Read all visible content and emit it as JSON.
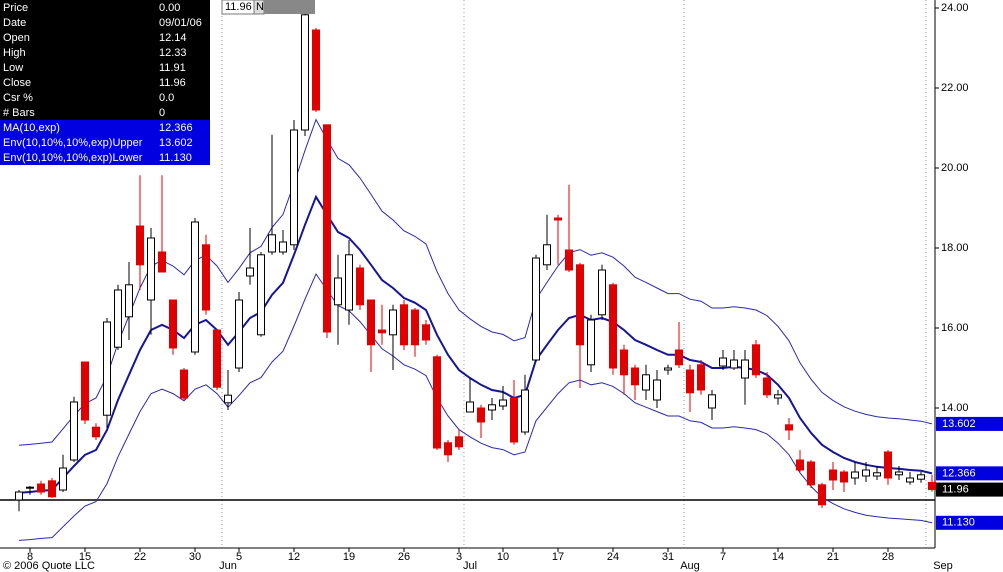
{
  "chart_data": {
    "type": "candlestick",
    "categories": [
      null,
      "8",
      null,
      null,
      null,
      null,
      "15",
      null,
      null,
      null,
      null,
      "22",
      null,
      null,
      null,
      null,
      "30",
      null,
      null,
      null,
      "5",
      null,
      null,
      null,
      null,
      "12",
      null,
      null,
      null,
      null,
      "19",
      null,
      null,
      null,
      null,
      "26",
      null,
      null,
      null,
      null,
      "3",
      null,
      null,
      null,
      "10",
      null,
      null,
      null,
      null,
      "17",
      null,
      null,
      null,
      null,
      "24",
      null,
      null,
      null,
      null,
      "31",
      null,
      null,
      null,
      null,
      "7",
      null,
      null,
      null,
      null,
      "14",
      null,
      null,
      null,
      null,
      "21",
      null,
      null,
      null,
      null,
      "28",
      null,
      null,
      null,
      null
    ],
    "month_labels": [
      null,
      null,
      null,
      null,
      null,
      null,
      null,
      null,
      null,
      null,
      null,
      null,
      null,
      null,
      null,
      null,
      null,
      null,
      null,
      "Jun",
      null,
      null,
      null,
      null,
      null,
      null,
      null,
      null,
      null,
      null,
      null,
      null,
      null,
      null,
      null,
      null,
      null,
      null,
      null,
      null,
      null,
      "Jul",
      null,
      null,
      null,
      null,
      null,
      null,
      null,
      null,
      null,
      null,
      null,
      null,
      null,
      null,
      null,
      null,
      null,
      null,
      null,
      "Aug",
      null,
      null,
      null,
      null,
      null,
      null,
      null,
      null,
      null,
      null,
      null,
      null,
      null,
      null,
      null,
      null,
      null,
      null,
      null,
      null,
      null,
      "Sep"
    ],
    "open": [
      11.7,
      12.0,
      12.1,
      12.18,
      11.95,
      12.7,
      15.15,
      13.52,
      13.82,
      15.52,
      16.28,
      18.55,
      16.7,
      17.9,
      16.7,
      14.95,
      15.4,
      18.08,
      15.95,
      14.13,
      15.0,
      17.3,
      15.83,
      17.9,
      17.9,
      18.08,
      20.95,
      23.45,
      21.08,
      16.58,
      16.45,
      17.5,
      16.7,
      15.95,
      15.83,
      16.58,
      16.45,
      16.08,
      15.28,
      13.13,
      13.28,
      13.9,
      14.0,
      13.95,
      14.05,
      14.25,
      13.4,
      15.2,
      17.58,
      18.75,
      17.95,
      17.58,
      15.08,
      16.33,
      17.08,
      15.45,
      15.0,
      14.45,
      14.2,
      14.95,
      15.45,
      14.95,
      15.08,
      14.0,
      15.05,
      15.0,
      14.75,
      15.58,
      14.75,
      14.25,
      13.58,
      12.7,
      12.65,
      12.08,
      12.45,
      12.4,
      12.25,
      12.3,
      12.3,
      12.9,
      12.33,
      12.15,
      12.22,
      12.14
    ],
    "high": [
      11.95,
      12.05,
      12.18,
      12.25,
      12.83,
      14.28,
      15.15,
      13.62,
      16.25,
      17.08,
      17.65,
      19.82,
      18.5,
      19.82,
      16.7,
      15.0,
      18.75,
      18.33,
      15.95,
      14.95,
      16.9,
      18.5,
      17.9,
      20.83,
      18.45,
      21.2,
      23.95,
      23.5,
      21.08,
      17.83,
      18.2,
      17.58,
      16.7,
      16.58,
      16.58,
      16.7,
      16.5,
      16.2,
      15.33,
      13.2,
      13.45,
      14.75,
      14.08,
      14.25,
      14.55,
      14.7,
      14.83,
      17.83,
      18.83,
      18.83,
      19.58,
      17.63,
      16.33,
      17.58,
      17.13,
      15.58,
      15.08,
      15.08,
      14.95,
      15.08,
      16.15,
      15.08,
      15.2,
      14.45,
      15.45,
      15.45,
      15.45,
      15.7,
      14.9,
      14.45,
      13.75,
      12.95,
      12.7,
      12.13,
      12.65,
      12.45,
      12.65,
      12.65,
      12.55,
      12.95,
      12.55,
      12.4,
      12.4,
      12.33
    ],
    "low": [
      11.42,
      11.83,
      11.83,
      11.75,
      11.9,
      12.65,
      13.6,
      13.2,
      13.5,
      15.45,
      15.7,
      16.95,
      15.83,
      17.4,
      15.33,
      14.2,
      15.33,
      16.33,
      14.45,
      13.95,
      14.9,
      17.08,
      15.78,
      17.83,
      17.83,
      17.95,
      20.8,
      21.4,
      15.75,
      15.58,
      16.08,
      16.45,
      14.9,
      15.58,
      14.95,
      15.45,
      15.28,
      15.58,
      12.95,
      12.65,
      12.95,
      13.9,
      13.25,
      13.7,
      13.95,
      13.08,
      13.33,
      15.15,
      17.45,
      17.58,
      17.4,
      14.5,
      14.9,
      16.2,
      14.83,
      14.33,
      14.2,
      14.2,
      14.0,
      14.83,
      15.0,
      13.9,
      14.33,
      13.7,
      14.95,
      14.95,
      14.08,
      14.75,
      14.25,
      14.08,
      13.2,
      12.4,
      12.0,
      11.5,
      11.95,
      11.9,
      12.08,
      12.15,
      12.2,
      12.08,
      12.2,
      12.08,
      12.13,
      11.91
    ],
    "close": [
      11.9,
      12.02,
      11.9,
      11.78,
      12.5,
      14.15,
      13.7,
      13.28,
      16.15,
      16.95,
      17.08,
      17.58,
      18.25,
      17.4,
      15.5,
      14.25,
      18.65,
      16.45,
      14.52,
      14.32,
      16.7,
      17.5,
      17.83,
      18.33,
      18.15,
      20.95,
      23.83,
      21.45,
      15.9,
      17.25,
      17.83,
      16.58,
      15.58,
      15.88,
      16.45,
      15.58,
      15.58,
      15.7,
      13.0,
      12.83,
      13.03,
      14.15,
      13.65,
      14.08,
      14.2,
      13.15,
      14.45,
      17.75,
      18.08,
      18.7,
      17.45,
      15.58,
      16.2,
      17.45,
      15.0,
      14.83,
      14.58,
      14.83,
      14.7,
      15.0,
      15.08,
      14.38,
      14.45,
      14.33,
      15.25,
      15.2,
      15.2,
      14.83,
      14.33,
      14.33,
      13.45,
      12.45,
      12.08,
      11.58,
      12.2,
      12.15,
      12.4,
      12.45,
      12.38,
      12.25,
      12.4,
      12.25,
      12.33,
      11.96
    ],
    "up_color": "#ffffff",
    "down_color": "#e00000",
    "series": [
      {
        "name": "MA(10,exp)",
        "color": "#15159a",
        "last_label": "12.366",
        "values": [
          11.88,
          11.9,
          11.93,
          11.95,
          12.25,
          12.55,
          12.83,
          12.95,
          13.45,
          14.2,
          14.83,
          15.45,
          15.95,
          16.08,
          15.95,
          15.75,
          16.08,
          16.2,
          15.95,
          15.58,
          15.9,
          16.25,
          16.4,
          16.83,
          17.13,
          17.83,
          18.58,
          19.28,
          18.83,
          18.4,
          18.25,
          17.95,
          17.58,
          17.2,
          17.0,
          16.75,
          16.63,
          16.45,
          15.83,
          15.33,
          14.95,
          14.75,
          14.58,
          14.45,
          14.4,
          14.25,
          14.33,
          15.2,
          15.58,
          15.95,
          16.25,
          16.33,
          16.2,
          16.25,
          16.15,
          15.95,
          15.7,
          15.58,
          15.45,
          15.33,
          15.33,
          15.2,
          15.15,
          15.0,
          15.0,
          15.03,
          15.0,
          14.95,
          14.83,
          14.58,
          14.25,
          13.75,
          13.38,
          13.08,
          12.9,
          12.75,
          12.65,
          12.58,
          12.53,
          12.5,
          12.48,
          12.45,
          12.43,
          12.366
        ]
      },
      {
        "name": "Env(10,10%,10%,exp)Upper",
        "color": "#2a2ab0",
        "last_label": "13.602",
        "values": [
          13.07,
          13.09,
          13.12,
          13.15,
          13.48,
          13.81,
          14.11,
          14.25,
          14.8,
          15.62,
          16.31,
          17.0,
          17.55,
          17.69,
          17.55,
          17.33,
          17.69,
          17.82,
          17.55,
          17.14,
          17.49,
          17.88,
          18.04,
          18.51,
          18.84,
          19.61,
          20.44,
          21.21,
          20.71,
          20.24,
          20.08,
          19.75,
          19.34,
          18.92,
          18.7,
          18.43,
          18.29,
          18.1,
          17.41,
          16.86,
          16.45,
          16.23,
          16.04,
          15.9,
          15.84,
          15.68,
          15.76,
          16.72,
          17.14,
          17.55,
          17.88,
          17.96,
          17.82,
          17.88,
          17.77,
          17.55,
          17.27,
          17.14,
          17.0,
          16.86,
          16.86,
          16.72,
          16.67,
          16.5,
          16.5,
          16.53,
          16.5,
          16.45,
          16.31,
          16.04,
          15.68,
          15.13,
          14.72,
          14.39,
          14.19,
          14.03,
          13.92,
          13.84,
          13.78,
          13.75,
          13.73,
          13.7,
          13.67,
          13.602
        ]
      },
      {
        "name": "Env(10,10%,10%,exp)Lower",
        "color": "#2a2ab0",
        "last_label": "11.130",
        "values": [
          10.69,
          10.71,
          10.74,
          10.76,
          11.03,
          11.3,
          11.55,
          11.66,
          12.11,
          12.78,
          13.35,
          13.91,
          14.36,
          14.47,
          14.36,
          14.18,
          14.47,
          14.58,
          14.36,
          14.02,
          14.31,
          14.63,
          14.76,
          15.15,
          15.42,
          16.05,
          16.72,
          17.35,
          16.95,
          16.56,
          16.43,
          16.16,
          15.82,
          15.48,
          15.3,
          15.08,
          14.97,
          14.81,
          14.25,
          13.8,
          13.46,
          13.28,
          13.12,
          13.01,
          12.96,
          12.83,
          12.9,
          13.68,
          14.02,
          14.36,
          14.63,
          14.7,
          14.58,
          14.63,
          14.54,
          14.36,
          14.13,
          14.02,
          13.91,
          13.8,
          13.8,
          13.68,
          13.64,
          13.5,
          13.5,
          13.53,
          13.5,
          13.46,
          13.35,
          13.12,
          12.83,
          12.38,
          12.04,
          11.77,
          11.61,
          11.48,
          11.39,
          11.32,
          11.28,
          11.25,
          11.23,
          11.21,
          11.19,
          11.13
        ]
      }
    ],
    "ylim": [
      10.5,
      24.2
    ],
    "yticks": [
      {
        "value": 14,
        "label": "14.00"
      },
      {
        "value": 16,
        "label": "16.00"
      },
      {
        "value": 18,
        "label": "18.00"
      },
      {
        "value": 20,
        "label": "20.00"
      },
      {
        "value": 22,
        "label": "22.00"
      },
      {
        "value": 24,
        "label": "24.00"
      }
    ],
    "hline": 11.7,
    "cursor_flag": "N",
    "info_panel": [
      [
        "Price",
        "0.00"
      ],
      [
        "Date",
        "09/01/06"
      ],
      [
        "Open",
        "12.14"
      ],
      [
        "High",
        "12.33"
      ],
      [
        "Low",
        "11.91"
      ],
      [
        "Close",
        "11.96"
      ],
      [
        "Csr %",
        "0.0"
      ],
      [
        "# Bars",
        "0"
      ]
    ],
    "copyright": "© 2006 Quote LLC"
  }
}
